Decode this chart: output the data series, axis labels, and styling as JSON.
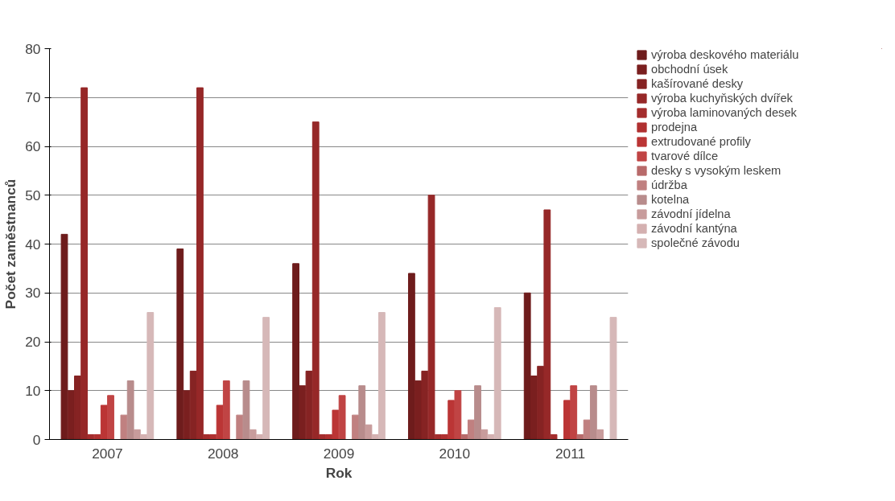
{
  "chart_data": {
    "type": "bar",
    "xlabel": "Rok",
    "ylabel": "Počet zaměstnanců",
    "categories": [
      "2007",
      "2008",
      "2009",
      "2010",
      "2011"
    ],
    "ylim": [
      0,
      80
    ],
    "yticks": [
      0,
      10,
      20,
      30,
      40,
      50,
      60,
      70,
      80
    ],
    "grid": "y",
    "legend": "right",
    "series": [
      {
        "name": "výroba deskového materiálu",
        "color": "#6e1c1c",
        "values": [
          42,
          39,
          36,
          34,
          30
        ]
      },
      {
        "name": "obchodní úsek",
        "color": "#7a1f1f",
        "values": [
          10,
          10,
          11,
          12,
          13
        ]
      },
      {
        "name": "kašírované desky",
        "color": "#862323",
        "values": [
          13,
          14,
          14,
          14,
          15
        ]
      },
      {
        "name": "výroba kuchyňských dvířek",
        "color": "#962828",
        "values": [
          72,
          72,
          65,
          50,
          47
        ]
      },
      {
        "name": "výroba laminovaných desek",
        "color": "#a42d2d",
        "values": [
          1,
          1,
          1,
          1,
          1
        ]
      },
      {
        "name": "prodejna",
        "color": "#b03030",
        "values": [
          1,
          1,
          1,
          1,
          0
        ]
      },
      {
        "name": "extrudované profily",
        "color": "#bb3535",
        "values": [
          7,
          7,
          6,
          8,
          8
        ]
      },
      {
        "name": "tvarové dílce",
        "color": "#c04444",
        "values": [
          9,
          12,
          9,
          10,
          11
        ]
      },
      {
        "name": "desky s vysokým leskem",
        "color": "#b86a6a",
        "values": [
          0,
          0,
          0,
          1,
          1
        ]
      },
      {
        "name": "údržba",
        "color": "#c08080",
        "values": [
          5,
          5,
          5,
          4,
          4
        ]
      },
      {
        "name": "kotelna",
        "color": "#b88c8c",
        "values": [
          12,
          12,
          11,
          11,
          11
        ]
      },
      {
        "name": "závodní jídelna",
        "color": "#c89c9c",
        "values": [
          2,
          2,
          3,
          2,
          2
        ]
      },
      {
        "name": "závodní kantýna",
        "color": "#d4b0b0",
        "values": [
          1,
          1,
          1,
          1,
          0
        ]
      },
      {
        "name": "společné závodu",
        "color": "#d6b8b8",
        "values": [
          26,
          25,
          26,
          27,
          25
        ]
      }
    ]
  }
}
